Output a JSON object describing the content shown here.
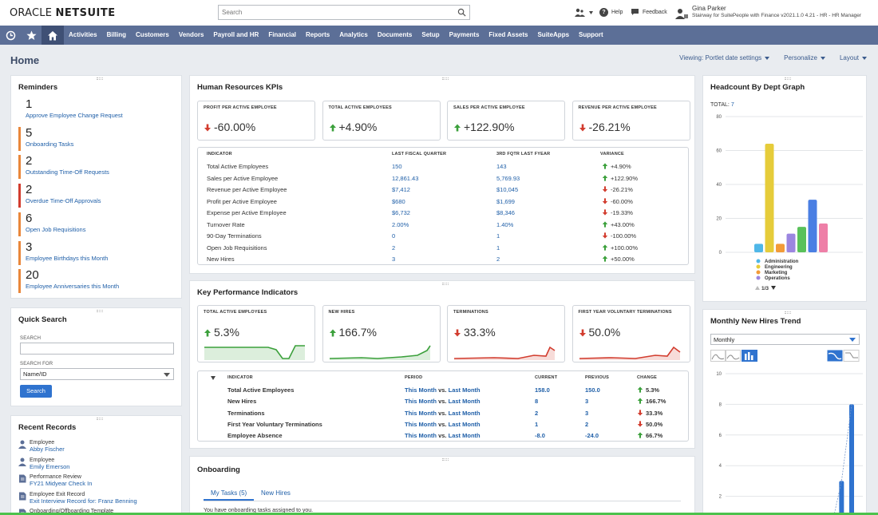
{
  "topbar": {
    "logo_text": "ORACLE",
    "logo_text_bold": "NETSUITE",
    "search_placeholder": "Search",
    "help_label": "Help",
    "feedback_label": "Feedback",
    "user_name": "Gina Parker",
    "user_role": "Stairway for SuitePeople with Finance v2021.1.0 4.21 - HR - HR Manager"
  },
  "nav": {
    "items": [
      "Activities",
      "Billing",
      "Customers",
      "Vendors",
      "Payroll and HR",
      "Financial",
      "Reports",
      "Analytics",
      "Documents",
      "Setup",
      "Payments",
      "Fixed Assets",
      "SuiteApps",
      "Support"
    ]
  },
  "page": {
    "title": "Home",
    "viewing_label": "Viewing: Portlet date settings",
    "personalize_label": "Personalize",
    "layout_label": "Layout"
  },
  "reminders": {
    "title": "Reminders",
    "items": [
      {
        "count": "1",
        "label": "Approve Employee Change Request",
        "color": "#ffffff"
      },
      {
        "count": "5",
        "label": "Onboarding Tasks",
        "color": "#e9873b"
      },
      {
        "count": "2",
        "label": "Outstanding Time-Off Requests",
        "color": "#e9873b"
      },
      {
        "count": "2",
        "label": "Overdue Time-Off Approvals",
        "color": "#d23c2e"
      },
      {
        "count": "6",
        "label": "Open Job Requisitions",
        "color": "#e9873b"
      },
      {
        "count": "3",
        "label": "Employee Birthdays this Month",
        "color": "#e9873b"
      },
      {
        "count": "20",
        "label": "Employee Anniversaries this Month",
        "color": "#e9873b"
      }
    ]
  },
  "quick_search": {
    "title": "Quick Search",
    "search_label": "SEARCH",
    "search_value": "",
    "search_for_label": "SEARCH FOR",
    "search_for_value": "Name/ID",
    "button_label": "Search"
  },
  "recent_records": {
    "title": "Recent Records",
    "items": [
      {
        "type": "Employee",
        "name": "Abby Fischer",
        "icon": "person-icon"
      },
      {
        "type": "Employee",
        "name": "Emily Emerson",
        "icon": "person-icon"
      },
      {
        "type": "Performance Review",
        "name": "FY21 Midyear Check In",
        "icon": "document-icon"
      },
      {
        "type": "Employee Exit Record",
        "name": "Exit Interview Record for: Franz Benning",
        "icon": "document-icon"
      },
      {
        "type": "Onboarding/Offboarding Template",
        "name": "",
        "icon": "document-icon"
      }
    ]
  },
  "hr_kpis": {
    "title": "Human Resources KPIs",
    "cards": [
      {
        "label": "PROFIT PER ACTIVE EMPLOYEE",
        "value": "-60.00%",
        "dir": "down"
      },
      {
        "label": "TOTAL ACTIVE EMPLOYEES",
        "value": "+4.90%",
        "dir": "up"
      },
      {
        "label": "SALES PER ACTIVE EMPLOYEE",
        "value": "+122.90%",
        "dir": "up"
      },
      {
        "label": "REVENUE PER ACTIVE EMPLOYEE",
        "value": "-26.21%",
        "dir": "down"
      }
    ],
    "table": {
      "headers": [
        "INDICATOR",
        "LAST FISCAL QUARTER",
        "3RD FQTR LAST FYEAR",
        "VARIANCE"
      ],
      "rows": [
        {
          "indicator": "Total Active Employees",
          "last": "150",
          "prev": "143",
          "variance": "+4.90%",
          "dir": "up"
        },
        {
          "indicator": "Sales per Active Employee",
          "last": "12,861.43",
          "prev": "5,769.93",
          "variance": "+122.90%",
          "dir": "up"
        },
        {
          "indicator": "Revenue per Active Employee",
          "last": "$7,412",
          "prev": "$10,045",
          "variance": "-26.21%",
          "dir": "down"
        },
        {
          "indicator": "Profit per Active Employee",
          "last": "$680",
          "prev": "$1,699",
          "variance": "-60.00%",
          "dir": "down"
        },
        {
          "indicator": "Expense per Active Employee",
          "last": "$6,732",
          "prev": "$8,346",
          "variance": "-19.33%",
          "dir": "down"
        },
        {
          "indicator": "Turnover Rate",
          "last": "2.00%",
          "prev": "1.40%",
          "variance": "+43.00%",
          "dir": "up"
        },
        {
          "indicator": "90-Day Terminations",
          "last": "0",
          "prev": "1",
          "variance": "-100.00%",
          "dir": "down"
        },
        {
          "indicator": "Open Job Requisitions",
          "last": "2",
          "prev": "1",
          "variance": "+100.00%",
          "dir": "up"
        },
        {
          "indicator": "New Hires",
          "last": "3",
          "prev": "2",
          "variance": "+50.00%",
          "dir": "up"
        }
      ]
    }
  },
  "kpi": {
    "title": "Key Performance Indicators",
    "cards": [
      {
        "label": "TOTAL ACTIVE EMPLOYEES",
        "value": "5.3%",
        "dir": "up",
        "color": "#3ba03b"
      },
      {
        "label": "NEW HIRES",
        "value": "166.7%",
        "dir": "up",
        "color": "#3ba03b"
      },
      {
        "label": "TERMINATIONS",
        "value": "33.3%",
        "dir": "down",
        "color": "#d23c2e"
      },
      {
        "label": "FIRST YEAR VOLUNTARY TERMINATIONS",
        "value": "50.0%",
        "dir": "down",
        "color": "#d23c2e"
      }
    ],
    "table": {
      "headers": [
        "INDICATOR",
        "PERIOD",
        "CURRENT",
        "PREVIOUS",
        "CHANGE"
      ],
      "period_text": "This Month",
      "period_vs": "vs.",
      "period_text2": "Last Month",
      "rows": [
        {
          "indicator": "Total Active Employees",
          "current": "158.0",
          "previous": "150.0",
          "change": "5.3%",
          "dir": "up"
        },
        {
          "indicator": "New Hires",
          "current": "8",
          "previous": "3",
          "change": "166.7%",
          "dir": "up"
        },
        {
          "indicator": "Terminations",
          "current": "2",
          "previous": "3",
          "change": "33.3%",
          "dir": "down"
        },
        {
          "indicator": "First Year Voluntary Terminations",
          "current": "1",
          "previous": "2",
          "change": "50.0%",
          "dir": "down"
        },
        {
          "indicator": "Employee Absence",
          "current": "-8.0",
          "previous": "-24.0",
          "change": "66.7%",
          "dir": "up"
        }
      ]
    }
  },
  "onboarding": {
    "title": "Onboarding",
    "tabs": [
      "My Tasks (5)",
      "New Hires"
    ],
    "message": "You have onboarding tasks assigned to you."
  },
  "headcount": {
    "title": "Headcount By Dept Graph",
    "total_label": "TOTAL:",
    "total_value": "7",
    "legend_pager": "1/3",
    "legend": [
      {
        "name": "Administration",
        "color": "#4fb7e8"
      },
      {
        "name": "Engineering",
        "color": "#e6cc3a"
      },
      {
        "name": "Marketing",
        "color": "#f29b38"
      },
      {
        "name": "Operations",
        "color": "#9b86e0"
      }
    ]
  },
  "hires_trend": {
    "title": "Monthly New Hires Trend",
    "period_value": "Monthly"
  },
  "chart_data": [
    {
      "type": "bar",
      "title": "Headcount By Dept Graph",
      "ylim": [
        0,
        80
      ],
      "yticks": [
        "0",
        "20",
        "40",
        "60",
        "80"
      ],
      "series": [
        {
          "name": "Headcount",
          "values": [
            5,
            64,
            5,
            11,
            15,
            31,
            17
          ]
        }
      ],
      "bar_colors": [
        "#4fb7e8",
        "#e6cc3a",
        "#f29b38",
        "#9b86e0",
        "#59c15a",
        "#4a7fe3",
        "#ee7fa7"
      ]
    },
    {
      "type": "bar",
      "title": "Monthly New Hires Trend",
      "ylim": [
        0,
        10
      ],
      "yticks": [
        "2",
        "4",
        "6",
        "8",
        "10"
      ],
      "series": [
        {
          "name": "New Hires",
          "values": [
            0,
            0,
            0,
            0,
            0,
            0,
            0,
            0,
            0,
            0,
            0,
            3,
            8
          ]
        }
      ]
    }
  ]
}
